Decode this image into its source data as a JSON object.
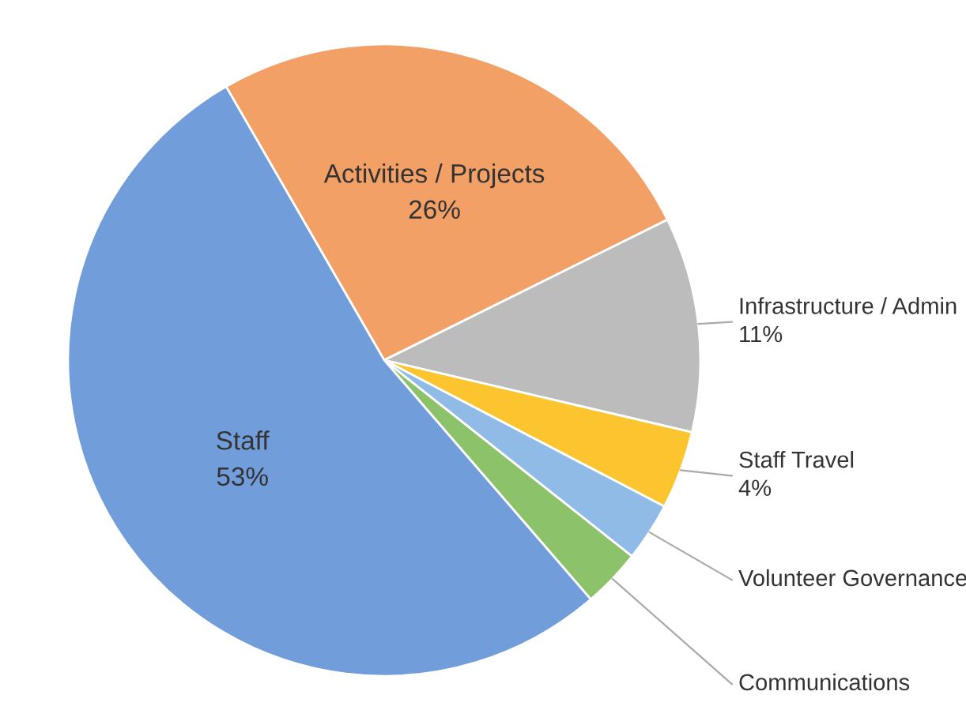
{
  "chart_data": {
    "type": "pie",
    "categories": [
      "Activities / Projects",
      "Infrastructure / Admin",
      "Staff Travel",
      "Volunteer Governance",
      "Communications",
      "Staff"
    ],
    "values": [
      26,
      11,
      4,
      3,
      3,
      53
    ],
    "value_labels": [
      "26%",
      "11%",
      "4%",
      null,
      null,
      "53%"
    ],
    "colors": [
      "#f2a066",
      "#bcbcbc",
      "#fcc530",
      "#8fbbe6",
      "#8cc26a",
      "#729ddb"
    ]
  }
}
